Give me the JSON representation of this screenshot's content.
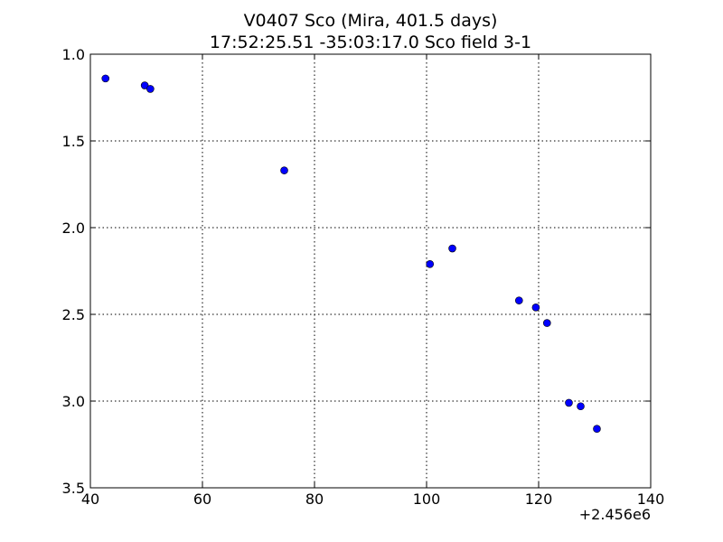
{
  "chart_data": {
    "type": "scatter",
    "title": "V0407 Sco (Mira, 401.5 days)",
    "subtitle": "17:52:25.51 -35:03:17.0 Sco field 3-1",
    "x_offset_label": "+2.456e6",
    "xlim": [
      40,
      140
    ],
    "ylim": [
      1.0,
      3.5
    ],
    "y_inverted": true,
    "grid": true,
    "x_ticks": [
      "40",
      "60",
      "80",
      "100",
      "120",
      "140"
    ],
    "y_ticks": [
      "1.0",
      "1.5",
      "2.0",
      "2.5",
      "3.0",
      "3.5"
    ],
    "marker_color": "#0000ff",
    "series": [
      {
        "x": [
          42.7,
          49.7,
          50.7,
          74.6,
          100.6,
          104.6,
          116.5,
          119.5,
          121.5,
          125.4,
          127.5,
          130.4
        ],
        "y": [
          1.14,
          1.18,
          1.2,
          1.67,
          2.21,
          2.12,
          2.42,
          2.46,
          2.55,
          3.01,
          3.03,
          3.16
        ]
      }
    ]
  }
}
